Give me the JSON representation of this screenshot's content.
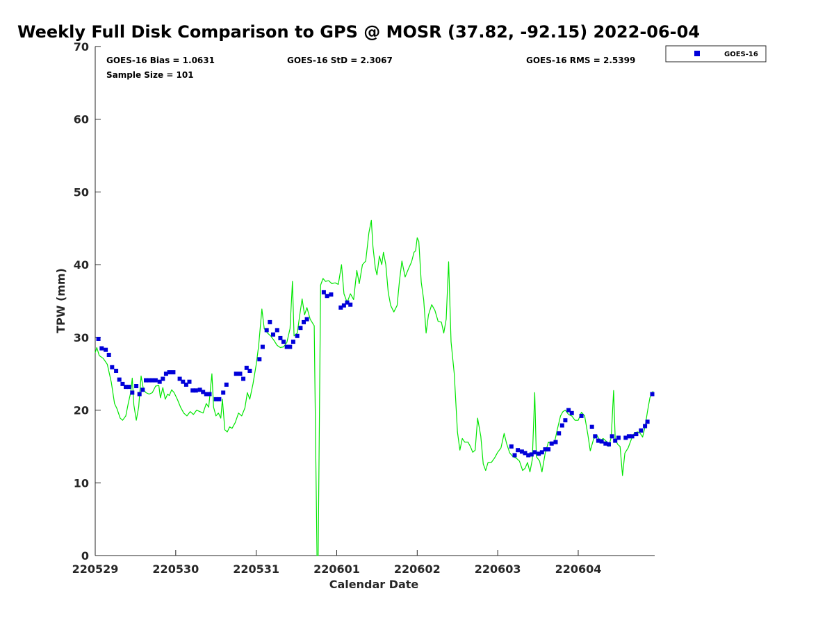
{
  "colors": {
    "goes": "#0000d9",
    "gps": "#00e600",
    "axis": "#262626"
  },
  "chart_data": {
    "type": "scatter",
    "title": "Weekly Full Disk Comparison to GPS @ MOSR (37.82, -92.15) 2022-06-04",
    "xlabel": "Calendar Date",
    "ylabel": "TPW (mm)",
    "xlim": [
      0,
      6.95
    ],
    "ylim": [
      0,
      70
    ],
    "xticks": [
      {
        "value": 0,
        "label": "220529"
      },
      {
        "value": 1,
        "label": "220530"
      },
      {
        "value": 2,
        "label": "220531"
      },
      {
        "value": 3,
        "label": "220601"
      },
      {
        "value": 4,
        "label": "220602"
      },
      {
        "value": 5,
        "label": "220603"
      },
      {
        "value": 6,
        "label": "220604"
      }
    ],
    "yticks": [
      0,
      10,
      20,
      30,
      40,
      50,
      60,
      70
    ],
    "legend": {
      "position": "top-right",
      "entries": [
        {
          "label": "GOES-16"
        }
      ]
    },
    "stats": {
      "bias": "GOES-16 Bias = 1.0631",
      "std": "GOES-16 StD = 2.3067",
      "rms": "GOES-16 RMS = 2.5399",
      "sample": "Sample Size = 101"
    },
    "series": [
      {
        "name": "GOES-16",
        "marker": "square",
        "points": [
          [
            0.04,
            29.8
          ],
          [
            0.08,
            28.5
          ],
          [
            0.13,
            28.3
          ],
          [
            0.17,
            27.6
          ],
          [
            0.21,
            25.9
          ],
          [
            0.26,
            25.4
          ],
          [
            0.3,
            24.2
          ],
          [
            0.34,
            23.6
          ],
          [
            0.38,
            23.2
          ],
          [
            0.42,
            23.2
          ],
          [
            0.46,
            22.4
          ],
          [
            0.51,
            23.3
          ],
          [
            0.55,
            22.2
          ],
          [
            0.59,
            22.8
          ],
          [
            0.63,
            24.1
          ],
          [
            0.67,
            24.1
          ],
          [
            0.71,
            24.1
          ],
          [
            0.75,
            24.1
          ],
          [
            0.8,
            23.9
          ],
          [
            0.84,
            24.3
          ],
          [
            0.88,
            25.0
          ],
          [
            0.92,
            25.2
          ],
          [
            0.97,
            25.2
          ],
          [
            1.05,
            24.3
          ],
          [
            1.09,
            23.9
          ],
          [
            1.13,
            23.5
          ],
          [
            1.17,
            23.9
          ],
          [
            1.21,
            22.7
          ],
          [
            1.25,
            22.7
          ],
          [
            1.3,
            22.8
          ],
          [
            1.34,
            22.5
          ],
          [
            1.38,
            22.2
          ],
          [
            1.42,
            22.2
          ],
          [
            1.5,
            21.5
          ],
          [
            1.54,
            21.5
          ],
          [
            1.59,
            22.4
          ],
          [
            1.63,
            23.5
          ],
          [
            1.75,
            25.0
          ],
          [
            1.8,
            25.0
          ],
          [
            1.84,
            24.3
          ],
          [
            1.88,
            25.8
          ],
          [
            1.92,
            25.4
          ],
          [
            2.04,
            27.0
          ],
          [
            2.08,
            28.7
          ],
          [
            2.13,
            31.0
          ],
          [
            2.17,
            32.1
          ],
          [
            2.21,
            30.4
          ],
          [
            2.26,
            31.0
          ],
          [
            2.3,
            29.9
          ],
          [
            2.34,
            29.4
          ],
          [
            2.38,
            28.7
          ],
          [
            2.42,
            28.7
          ],
          [
            2.46,
            29.4
          ],
          [
            2.51,
            30.2
          ],
          [
            2.55,
            31.3
          ],
          [
            2.59,
            32.1
          ],
          [
            2.63,
            32.5
          ],
          [
            2.84,
            36.2
          ],
          [
            2.88,
            35.7
          ],
          [
            2.93,
            35.9
          ],
          [
            3.05,
            34.1
          ],
          [
            3.09,
            34.4
          ],
          [
            3.13,
            34.8
          ],
          [
            3.17,
            34.5
          ],
          [
            5.17,
            15.0
          ],
          [
            5.21,
            13.8
          ],
          [
            5.25,
            14.5
          ],
          [
            5.3,
            14.3
          ],
          [
            5.34,
            14.1
          ],
          [
            5.38,
            13.8
          ],
          [
            5.42,
            13.9
          ],
          [
            5.46,
            14.2
          ],
          [
            5.51,
            14.0
          ],
          [
            5.55,
            14.2
          ],
          [
            5.59,
            14.6
          ],
          [
            5.63,
            14.6
          ],
          [
            5.67,
            15.4
          ],
          [
            5.72,
            15.6
          ],
          [
            5.76,
            16.8
          ],
          [
            5.8,
            17.9
          ],
          [
            5.84,
            18.6
          ],
          [
            5.88,
            20.0
          ],
          [
            5.92,
            19.6
          ],
          [
            6.04,
            19.2
          ],
          [
            6.17,
            17.7
          ],
          [
            6.21,
            16.4
          ],
          [
            6.25,
            15.8
          ],
          [
            6.29,
            15.7
          ],
          [
            6.34,
            15.4
          ],
          [
            6.38,
            15.3
          ],
          [
            6.42,
            16.4
          ],
          [
            6.46,
            15.8
          ],
          [
            6.5,
            16.2
          ],
          [
            6.59,
            16.2
          ],
          [
            6.63,
            16.4
          ],
          [
            6.67,
            16.4
          ],
          [
            6.72,
            16.7
          ],
          [
            6.78,
            17.2
          ],
          [
            6.83,
            17.8
          ],
          [
            6.86,
            18.4
          ],
          [
            6.92,
            22.2
          ]
        ]
      },
      {
        "name": "",
        "marker": "line",
        "points": [
          [
            0.0,
            27.9
          ],
          [
            0.02,
            28.6
          ],
          [
            0.05,
            27.5
          ],
          [
            0.1,
            27.1
          ],
          [
            0.15,
            26.3
          ],
          [
            0.2,
            23.8
          ],
          [
            0.24,
            20.9
          ],
          [
            0.27,
            20.2
          ],
          [
            0.31,
            18.9
          ],
          [
            0.34,
            18.6
          ],
          [
            0.38,
            19.2
          ],
          [
            0.41,
            20.9
          ],
          [
            0.44,
            22.4
          ],
          [
            0.46,
            24.4
          ],
          [
            0.48,
            20.7
          ],
          [
            0.51,
            18.6
          ],
          [
            0.54,
            20.4
          ],
          [
            0.57,
            24.7
          ],
          [
            0.6,
            22.8
          ],
          [
            0.63,
            22.4
          ],
          [
            0.67,
            22.2
          ],
          [
            0.71,
            22.4
          ],
          [
            0.75,
            23.3
          ],
          [
            0.79,
            23.4
          ],
          [
            0.81,
            21.7
          ],
          [
            0.84,
            23.1
          ],
          [
            0.87,
            21.5
          ],
          [
            0.9,
            22.2
          ],
          [
            0.92,
            22.0
          ],
          [
            0.95,
            22.8
          ],
          [
            0.98,
            22.4
          ],
          [
            1.02,
            21.5
          ],
          [
            1.06,
            20.4
          ],
          [
            1.1,
            19.6
          ],
          [
            1.14,
            19.2
          ],
          [
            1.18,
            19.8
          ],
          [
            1.22,
            19.4
          ],
          [
            1.26,
            20.0
          ],
          [
            1.3,
            19.8
          ],
          [
            1.34,
            19.6
          ],
          [
            1.38,
            20.9
          ],
          [
            1.41,
            20.4
          ],
          [
            1.45,
            25.0
          ],
          [
            1.47,
            20.4
          ],
          [
            1.5,
            19.2
          ],
          [
            1.53,
            19.6
          ],
          [
            1.56,
            18.9
          ],
          [
            1.58,
            21.5
          ],
          [
            1.61,
            17.3
          ],
          [
            1.64,
            17.0
          ],
          [
            1.67,
            17.7
          ],
          [
            1.7,
            17.5
          ],
          [
            1.74,
            18.3
          ],
          [
            1.78,
            19.6
          ],
          [
            1.82,
            19.2
          ],
          [
            1.86,
            20.3
          ],
          [
            1.89,
            22.4
          ],
          [
            1.92,
            21.5
          ],
          [
            1.96,
            23.6
          ],
          [
            2.0,
            26.3
          ],
          [
            2.03,
            28.8
          ],
          [
            2.07,
            33.9
          ],
          [
            2.1,
            31.2
          ],
          [
            2.14,
            30.6
          ],
          [
            2.18,
            30.2
          ],
          [
            2.22,
            29.6
          ],
          [
            2.26,
            28.9
          ],
          [
            2.3,
            28.6
          ],
          [
            2.34,
            28.7
          ],
          [
            2.38,
            29.3
          ],
          [
            2.42,
            31.2
          ],
          [
            2.45,
            37.7
          ],
          [
            2.47,
            30.2
          ],
          [
            2.51,
            30.6
          ],
          [
            2.54,
            33.0
          ],
          [
            2.57,
            35.3
          ],
          [
            2.6,
            33.1
          ],
          [
            2.63,
            34.1
          ],
          [
            2.67,
            32.5
          ],
          [
            2.72,
            31.6
          ],
          [
            2.755,
            0.0
          ],
          [
            2.77,
            0.0
          ],
          [
            2.8,
            37.2
          ],
          [
            2.83,
            38.1
          ],
          [
            2.86,
            37.7
          ],
          [
            2.9,
            37.8
          ],
          [
            2.94,
            37.4
          ],
          [
            2.98,
            37.5
          ],
          [
            3.02,
            37.3
          ],
          [
            3.06,
            40.0
          ],
          [
            3.09,
            36.0
          ],
          [
            3.13,
            34.8
          ],
          [
            3.17,
            36.0
          ],
          [
            3.21,
            35.2
          ],
          [
            3.25,
            39.2
          ],
          [
            3.28,
            37.4
          ],
          [
            3.32,
            40.0
          ],
          [
            3.36,
            40.5
          ],
          [
            3.4,
            44.4
          ],
          [
            3.43,
            46.1
          ],
          [
            3.45,
            42.5
          ],
          [
            3.48,
            39.5
          ],
          [
            3.5,
            38.6
          ],
          [
            3.53,
            41.2
          ],
          [
            3.56,
            40.0
          ],
          [
            3.58,
            41.7
          ],
          [
            3.61,
            40.0
          ],
          [
            3.64,
            36.2
          ],
          [
            3.67,
            34.4
          ],
          [
            3.71,
            33.5
          ],
          [
            3.75,
            34.4
          ],
          [
            3.78,
            37.8
          ],
          [
            3.81,
            40.5
          ],
          [
            3.85,
            38.3
          ],
          [
            3.89,
            39.4
          ],
          [
            3.93,
            40.4
          ],
          [
            3.96,
            41.7
          ],
          [
            3.98,
            41.9
          ],
          [
            4.0,
            43.7
          ],
          [
            4.02,
            43.2
          ],
          [
            4.05,
            37.6
          ],
          [
            4.08,
            35.2
          ],
          [
            4.11,
            30.6
          ],
          [
            4.14,
            33.1
          ],
          [
            4.18,
            34.5
          ],
          [
            4.22,
            33.7
          ],
          [
            4.26,
            32.2
          ],
          [
            4.3,
            32.1
          ],
          [
            4.33,
            30.6
          ],
          [
            4.36,
            32.5
          ],
          [
            4.39,
            40.4
          ],
          [
            4.42,
            29.4
          ],
          [
            4.46,
            25.0
          ],
          [
            4.5,
            17.0
          ],
          [
            4.53,
            14.5
          ],
          [
            4.56,
            16.1
          ],
          [
            4.59,
            15.6
          ],
          [
            4.63,
            15.6
          ],
          [
            4.66,
            15.0
          ],
          [
            4.69,
            14.2
          ],
          [
            4.72,
            14.5
          ],
          [
            4.75,
            18.9
          ],
          [
            4.79,
            16.4
          ],
          [
            4.82,
            12.6
          ],
          [
            4.85,
            11.7
          ],
          [
            4.88,
            12.8
          ],
          [
            4.92,
            12.8
          ],
          [
            4.96,
            13.4
          ],
          [
            5.0,
            14.2
          ],
          [
            5.04,
            14.8
          ],
          [
            5.08,
            16.8
          ],
          [
            5.11,
            15.4
          ],
          [
            5.15,
            14.1
          ],
          [
            5.19,
            13.6
          ],
          [
            5.23,
            13.4
          ],
          [
            5.27,
            13.0
          ],
          [
            5.31,
            11.7
          ],
          [
            5.34,
            12.0
          ],
          [
            5.37,
            12.8
          ],
          [
            5.4,
            11.5
          ],
          [
            5.43,
            13.2
          ],
          [
            5.46,
            22.4
          ],
          [
            5.48,
            13.6
          ],
          [
            5.52,
            13.0
          ],
          [
            5.55,
            11.5
          ],
          [
            5.59,
            14.1
          ],
          [
            5.63,
            15.6
          ],
          [
            5.67,
            15.3
          ],
          [
            5.71,
            15.8
          ],
          [
            5.74,
            17.3
          ],
          [
            5.78,
            19.2
          ],
          [
            5.81,
            19.8
          ],
          [
            5.84,
            20.0
          ],
          [
            5.88,
            19.4
          ],
          [
            5.92,
            19.2
          ],
          [
            5.96,
            18.6
          ],
          [
            6.0,
            18.6
          ],
          [
            6.04,
            19.7
          ],
          [
            6.08,
            19.2
          ],
          [
            6.12,
            16.6
          ],
          [
            6.15,
            14.4
          ],
          [
            6.19,
            16.0
          ],
          [
            6.23,
            16.6
          ],
          [
            6.27,
            15.8
          ],
          [
            6.31,
            16.1
          ],
          [
            6.35,
            15.7
          ],
          [
            6.38,
            15.0
          ],
          [
            6.41,
            16.3
          ],
          [
            6.44,
            22.7
          ],
          [
            6.46,
            16.0
          ],
          [
            6.49,
            15.3
          ],
          [
            6.52,
            15.0
          ],
          [
            6.55,
            11.0
          ],
          [
            6.58,
            14.1
          ],
          [
            6.62,
            14.8
          ],
          [
            6.66,
            16.0
          ],
          [
            6.7,
            16.9
          ],
          [
            6.74,
            17.0
          ],
          [
            6.77,
            16.8
          ],
          [
            6.8,
            16.3
          ],
          [
            6.83,
            17.7
          ],
          [
            6.86,
            19.8
          ],
          [
            6.89,
            21.7
          ],
          [
            6.93,
            22.6
          ]
        ]
      }
    ]
  }
}
